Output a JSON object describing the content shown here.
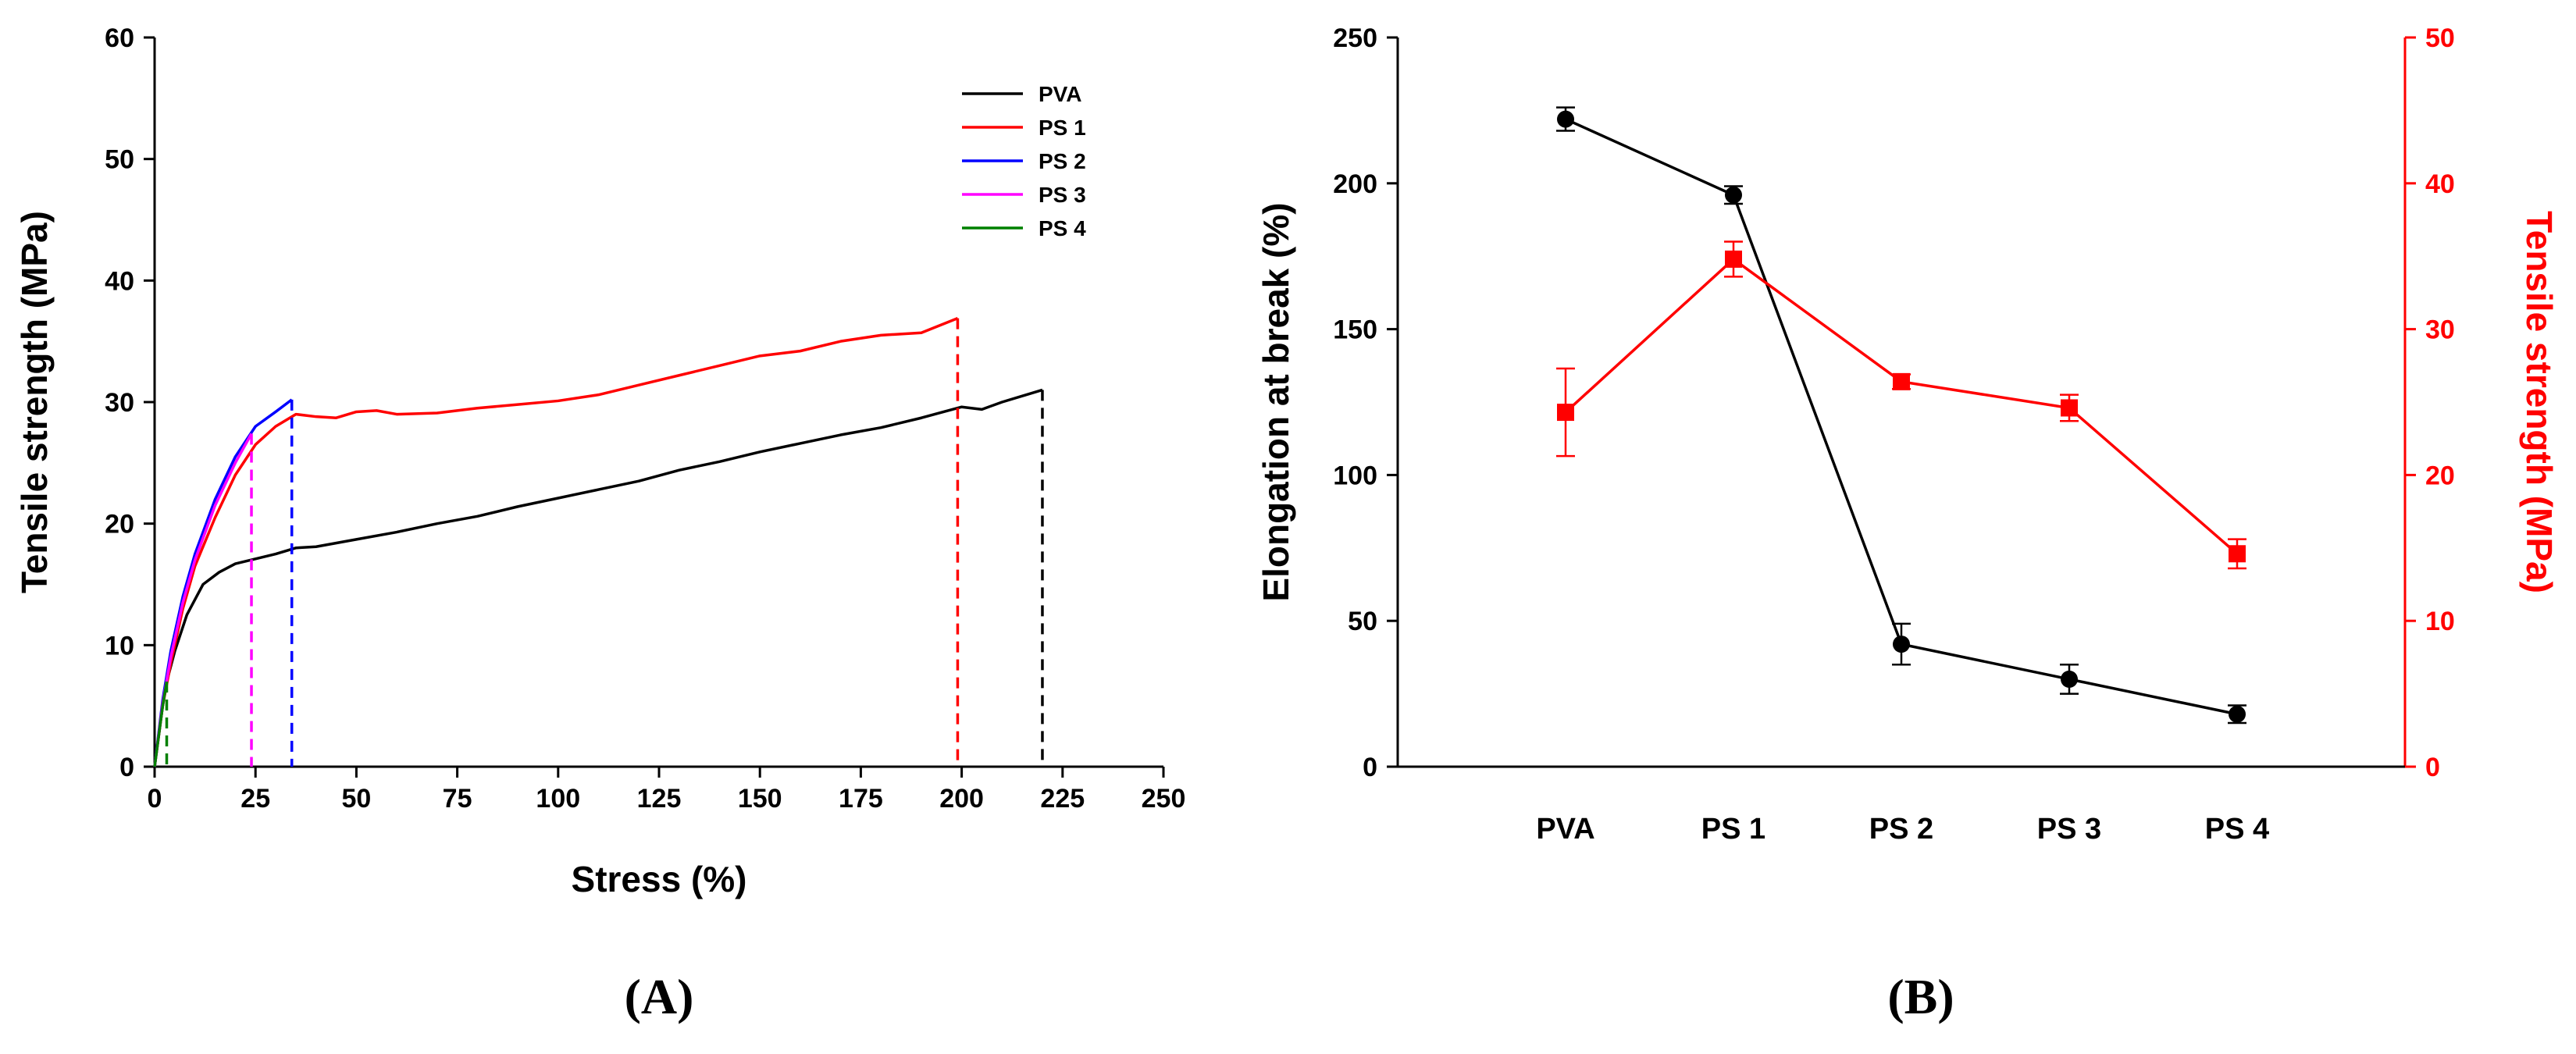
{
  "chart_data": [
    {
      "type": "line",
      "panel_label": "(A)",
      "xlabel": "Stress (%)",
      "ylabel": "Tensile strength (MPa)",
      "xlim": [
        0,
        250
      ],
      "ylim": [
        0,
        60
      ],
      "xticks": [
        0,
        25,
        50,
        75,
        100,
        125,
        150,
        175,
        200,
        225,
        250
      ],
      "yticks": [
        0,
        10,
        20,
        30,
        40,
        50,
        60
      ],
      "legend_position": "top-right",
      "grid": false,
      "series": [
        {
          "name": "PVA",
          "color": "#000000",
          "break_x": 220,
          "x": [
            0,
            1,
            2,
            3,
            5,
            8,
            12,
            16,
            20,
            25,
            30,
            35,
            40,
            50,
            60,
            70,
            80,
            90,
            100,
            110,
            120,
            130,
            140,
            150,
            160,
            170,
            180,
            190,
            200,
            205,
            210,
            220
          ],
          "y": [
            0,
            2.5,
            5,
            7,
            9.5,
            12.5,
            15,
            16,
            16.7,
            17.1,
            17.5,
            18,
            18.1,
            18.7,
            19.3,
            20,
            20.6,
            21.4,
            22.1,
            22.8,
            23.5,
            24.4,
            25.1,
            25.9,
            26.6,
            27.3,
            27.9,
            28.7,
            29.6,
            29.4,
            30,
            31
          ]
        },
        {
          "name": "PS 1",
          "color": "#ff0000",
          "break_x": 199,
          "x": [
            0,
            2,
            4,
            7,
            10,
            15,
            20,
            25,
            30,
            35,
            40,
            45,
            50,
            55,
            60,
            70,
            80,
            90,
            100,
            110,
            120,
            130,
            140,
            150,
            155,
            160,
            170,
            180,
            190,
            199
          ],
          "y": [
            0,
            5,
            8.5,
            13,
            16.5,
            20.5,
            24,
            26.5,
            28,
            29,
            28.8,
            28.7,
            29.2,
            29.3,
            29,
            29.1,
            29.5,
            29.8,
            30.1,
            30.6,
            31.4,
            32.2,
            33,
            33.8,
            34,
            34.2,
            35,
            35.5,
            35.7,
            36.9
          ]
        },
        {
          "name": "PS 2",
          "color": "#0000ff",
          "break_x": 34,
          "x": [
            0,
            2,
            4,
            7,
            10,
            15,
            20,
            25,
            30,
            34
          ],
          "y": [
            0,
            5.5,
            9.5,
            14,
            17.5,
            22,
            25.5,
            28,
            29.2,
            30.2
          ]
        },
        {
          "name": "PS 3",
          "color": "#ff00ff",
          "break_x": 24,
          "x": [
            0,
            2,
            4,
            7,
            10,
            15,
            20,
            24
          ],
          "y": [
            0,
            5.2,
            9,
            13.5,
            17,
            21.5,
            25,
            27.4
          ]
        },
        {
          "name": "PS 4",
          "color": "#008000",
          "break_x": 3,
          "x": [
            0,
            1,
            2,
            3
          ],
          "y": [
            0,
            2.5,
            5,
            7
          ]
        }
      ]
    },
    {
      "type": "line",
      "panel_label": "(B)",
      "categories": [
        "PVA",
        "PS 1",
        "PS 2",
        "PS 3",
        "PS 4"
      ],
      "ylabel": "Elongation at break (%)",
      "y2label": "Tensile strength (MPa)",
      "ylim": [
        0,
        250
      ],
      "y2lim": [
        0,
        50
      ],
      "yticks": [
        0,
        50,
        100,
        150,
        200,
        250
      ],
      "y2ticks": [
        0,
        10,
        20,
        30,
        40,
        50
      ],
      "grid": false,
      "series": [
        {
          "axis": "left",
          "color": "#000000",
          "marker": "circle",
          "values": [
            222,
            196,
            42,
            30,
            18
          ],
          "errors": [
            4,
            3,
            7,
            5,
            3
          ]
        },
        {
          "axis": "right",
          "color": "#ff0000",
          "marker": "square",
          "values": [
            24.3,
            34.8,
            26.4,
            24.6,
            14.6
          ],
          "errors": [
            3.0,
            1.2,
            0.5,
            0.9,
            1.0
          ]
        }
      ]
    }
  ]
}
